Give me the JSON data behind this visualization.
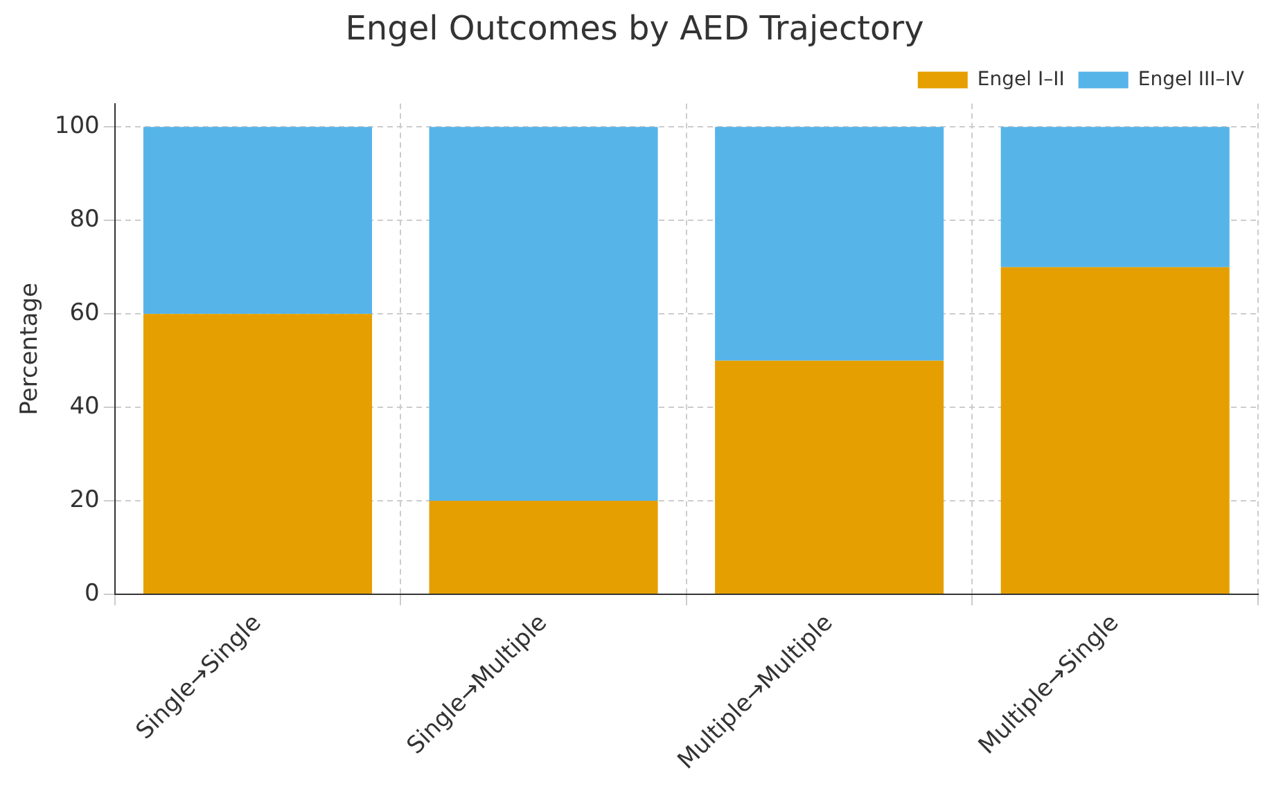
{
  "chart_data": {
    "type": "bar",
    "title": "Engel Outcomes by AED Trajectory",
    "ylabel": "Percentage",
    "categories": [
      "Single→Single",
      "Single→Multiple",
      "Multiple→Multiple",
      "Multiple→Single"
    ],
    "stacked": true,
    "series": [
      {
        "name": "Engel I–II",
        "color": "#e69f00",
        "values": [
          60,
          20,
          50,
          70
        ]
      },
      {
        "name": "Engel III–IV",
        "color": "#56b4e9",
        "values": [
          40,
          80,
          50,
          30
        ]
      }
    ],
    "ylim": [
      0,
      105
    ],
    "yticks": [
      0,
      20,
      40,
      60,
      80,
      100
    ],
    "grid": true,
    "legend": "top right"
  }
}
